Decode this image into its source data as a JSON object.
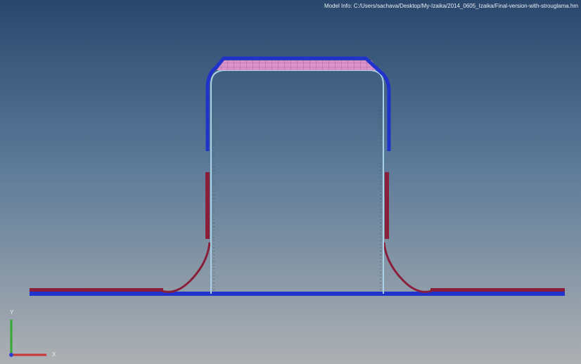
{
  "viewport": {
    "model_info": "Model Info: C:/Users/sachava/Desktop/My-Izaika/2014_0605_Izaika/Final-version-with-strouglama.hm"
  },
  "triad": {
    "y_label": "Y",
    "x_label": "X"
  }
}
